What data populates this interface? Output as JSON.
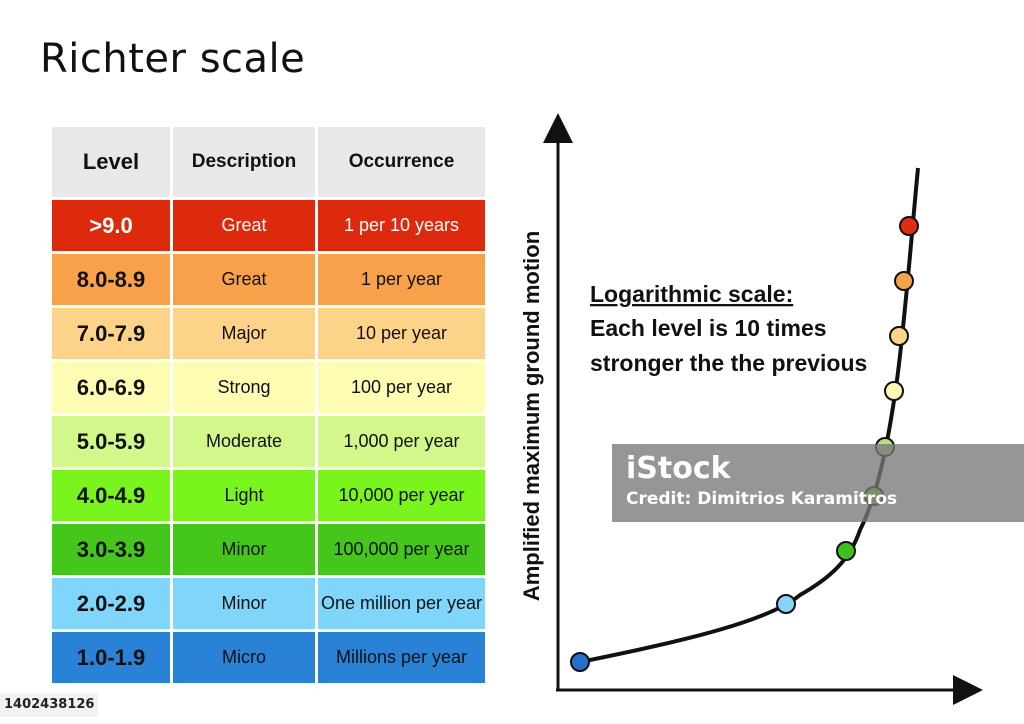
{
  "title": "Richter scale",
  "table": {
    "headers": [
      "Level",
      "Description",
      "Occurrence"
    ],
    "rows": [
      {
        "level": ">9.0",
        "description": "Great",
        "occurrence": "1 per 10 years",
        "color": "#dd2a0d",
        "text_color": "#ffffff"
      },
      {
        "level": "8.0-8.9",
        "description": "Great",
        "occurrence": "1 per year",
        "color": "#f7a24a",
        "text_color": "#111111"
      },
      {
        "level": "7.0-7.9",
        "description": "Major",
        "occurrence": "10 per year",
        "color": "#fdd38a",
        "text_color": "#111111"
      },
      {
        "level": "6.0-6.9",
        "description": "Strong",
        "occurrence": "100 per year",
        "color": "#fffcb4",
        "text_color": "#111111"
      },
      {
        "level": "5.0-5.9",
        "description": "Moderate",
        "occurrence": "1,000 per year",
        "color": "#d2f88c",
        "text_color": "#111111"
      },
      {
        "level": "4.0-4.9",
        "description": "Light",
        "occurrence": "10,000 per year",
        "color": "#79f41d",
        "text_color": "#111111"
      },
      {
        "level": "3.0-3.9",
        "description": "Minor",
        "occurrence": "100,000 per year",
        "color": "#44c71a",
        "text_color": "#111111"
      },
      {
        "level": "2.0-2.9",
        "description": "Minor",
        "occurrence": "One million per year",
        "color": "#7fd6fa",
        "text_color": "#111111"
      },
      {
        "level": "1.0-1.9",
        "description": "Micro",
        "occurrence": "Millions per year",
        "color": "#2a82d7",
        "text_color": "#111111"
      }
    ]
  },
  "graph": {
    "y_axis_label": "Amplified maximum ground motion",
    "note_title": "Logarithmic scale:",
    "note_line1": "Each level is 10 times",
    "note_line2": "stronger the the previous",
    "point_colors": [
      "#2a6fc7",
      "#87d4f5",
      "#3fbf1e",
      "#7fe030",
      "#b8e07a",
      "#fff6b0",
      "#fdd38a",
      "#f5a24a",
      "#e02c12"
    ]
  },
  "watermark": {
    "logo": "iStock",
    "credit": "Credit: Dimitrios Karamitros"
  },
  "stock_id": "1402438126"
}
